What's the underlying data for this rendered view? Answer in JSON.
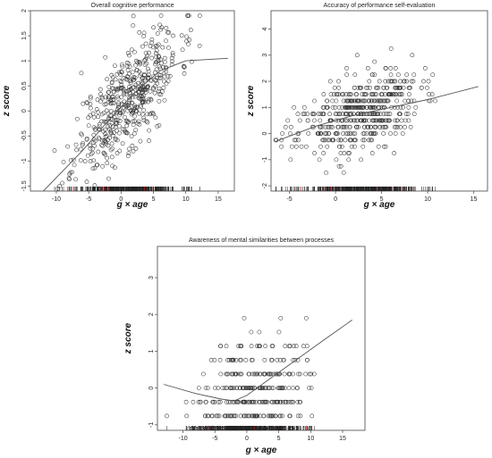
{
  "chart_data": [
    {
      "type": "scatter",
      "title": "Overall cognitive performance",
      "xlabel": "g × age",
      "ylabel": "z score",
      "xlim": [
        -14,
        17.5
      ],
      "ylim": [
        -1.6,
        2.0
      ],
      "xticks": [
        -10,
        -5,
        0,
        5,
        10,
        15
      ],
      "yticks": [
        -1.5,
        -1.0,
        -0.5,
        0.0,
        0.5,
        1.0,
        1.5,
        2.0
      ],
      "ytick_labels": [
        "-1.5",
        "-1",
        "-0.5",
        "0",
        "0.5",
        "1",
        "1.5",
        "2"
      ],
      "grid": false,
      "fit_line": {
        "x": [
          -12,
          -6,
          -2,
          2,
          6,
          10,
          16.5
        ],
        "y": [
          -1.6,
          -0.8,
          -0.2,
          0.35,
          0.8,
          1.0,
          1.05
        ]
      },
      "points": {
        "generated": true,
        "n": 520,
        "x_center": 1.0,
        "x_spread": 4.0,
        "slope": 0.13,
        "intercept": 0.1,
        "noise": 0.5,
        "seed": 11
      }
    },
    {
      "type": "scatter",
      "title": "Accuracy of performance self-evaluation",
      "xlabel": "g × age",
      "ylabel": "z score",
      "xlim": [
        -7,
        16.5
      ],
      "ylim": [
        -2.2,
        4.7
      ],
      "xticks": [
        -5,
        0,
        5,
        10,
        15
      ],
      "yticks": [
        -2,
        -1,
        0,
        1,
        2,
        3,
        4
      ],
      "ytick_labels": [
        "-2",
        "-1",
        "0",
        "1",
        "2",
        "3",
        "4"
      ],
      "grid": false,
      "fit_line": {
        "x": [
          -6.5,
          -2,
          2,
          6,
          10,
          15.5
        ],
        "y": [
          -0.3,
          0.3,
          0.7,
          1.0,
          1.3,
          1.8
        ]
      },
      "points": {
        "generated": true,
        "n": 520,
        "x_center": 2.5,
        "x_spread": 3.3,
        "slope": 0.1,
        "intercept": 0.5,
        "noise": 0.7,
        "seed": 23
      }
    },
    {
      "type": "scatter",
      "title": "Awareness of mental similarities between processes",
      "xlabel": "g × age",
      "ylabel": "z score",
      "xlim": [
        -14,
        18.5
      ],
      "ylim": [
        -1.15,
        3.85
      ],
      "xticks": [
        -10,
        -5,
        0,
        5,
        10,
        15
      ],
      "yticks": [
        -1,
        0,
        1,
        2,
        3
      ],
      "ytick_labels": [
        "-1",
        "0",
        "1",
        "2",
        "3"
      ],
      "grid": false,
      "fit_line": {
        "x": [
          -13,
          -8,
          -4,
          -2,
          0,
          4,
          8,
          12,
          16.5
        ],
        "y": [
          0.1,
          -0.15,
          -0.3,
          -0.35,
          -0.2,
          0.3,
          0.8,
          1.3,
          1.85
        ]
      },
      "points": {
        "generated": true,
        "n": 440,
        "x_center": 0.5,
        "x_spread": 4.2,
        "slope": 0.06,
        "intercept": -0.4,
        "noise": 0.9,
        "seed": 37
      }
    }
  ]
}
